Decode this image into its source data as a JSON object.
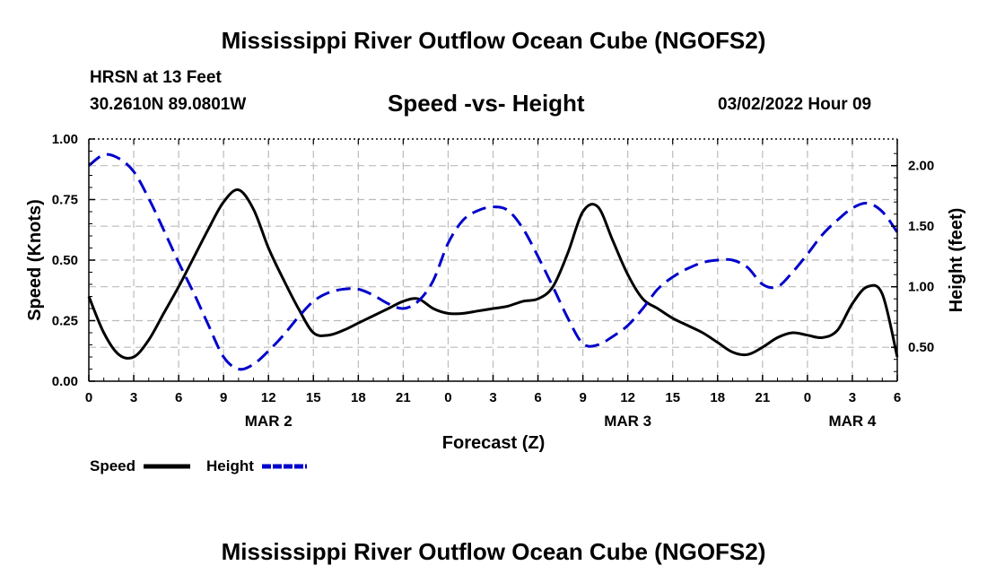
{
  "page": {
    "title": "Mississippi River Outflow Ocean Cube (NGOFS2)",
    "station": "HRSN at 13 Feet",
    "coords": "30.2610N  89.0801W",
    "subtitle": "Speed -vs- Height",
    "datetime": "03/02/2022 Hour 09",
    "footer_title": "Mississippi River Outflow Ocean Cube (NGOFS2)"
  },
  "chart_data": {
    "type": "line",
    "title": "Speed -vs- Height",
    "xlabel": "Forecast (Z)",
    "ylabel": "Speed (Knots)",
    "y2label": "Height (feet)",
    "xlim": [
      0,
      54
    ],
    "ylim": [
      0,
      1.0
    ],
    "y2lim": [
      0.22,
      2.22
    ],
    "grid": true,
    "x_ticks": [
      0,
      3,
      6,
      9,
      12,
      15,
      18,
      21,
      24,
      27,
      30,
      33,
      36,
      39,
      42,
      45,
      48,
      51,
      54
    ],
    "x_tick_labels": [
      "0",
      "3",
      "6",
      "9",
      "12",
      "15",
      "18",
      "21",
      "0",
      "3",
      "6",
      "9",
      "12",
      "15",
      "18",
      "21",
      "0",
      "3",
      "6"
    ],
    "y_ticks": [
      0.0,
      0.25,
      0.5,
      0.75,
      1.0
    ],
    "y_tick_labels": [
      "0.00",
      "0.25",
      "0.50",
      "0.75",
      "1.00"
    ],
    "y2_ticks": [
      0.5,
      1.0,
      1.5,
      2.0
    ],
    "y2_tick_labels": [
      "0.50",
      "1.00",
      "1.50",
      "2.00"
    ],
    "date_labels": [
      {
        "x": 12,
        "label": "MAR 2"
      },
      {
        "x": 36,
        "label": "MAR 3"
      },
      {
        "x": 51,
        "label": "MAR 4"
      }
    ],
    "legend_position": "bottom-left",
    "series": [
      {
        "name": "Speed",
        "axis": "left",
        "color": "#000000",
        "dash": "solid",
        "x": [
          0,
          1,
          2,
          3,
          4,
          5,
          6,
          7,
          8,
          9,
          10,
          11,
          12,
          13,
          14,
          15,
          16,
          17,
          18,
          19,
          20,
          21,
          22,
          23,
          24,
          25,
          26,
          27,
          28,
          29,
          30,
          31,
          32,
          33,
          34,
          35,
          36,
          37,
          38,
          39,
          40,
          41,
          42,
          43,
          44,
          45,
          46,
          47,
          48,
          49,
          50,
          51,
          52,
          53,
          54
        ],
        "values": [
          0.35,
          0.2,
          0.11,
          0.1,
          0.17,
          0.28,
          0.39,
          0.51,
          0.63,
          0.74,
          0.79,
          0.71,
          0.55,
          0.42,
          0.3,
          0.2,
          0.19,
          0.21,
          0.24,
          0.27,
          0.3,
          0.33,
          0.34,
          0.3,
          0.28,
          0.28,
          0.29,
          0.3,
          0.31,
          0.33,
          0.34,
          0.39,
          0.53,
          0.7,
          0.72,
          0.58,
          0.44,
          0.34,
          0.3,
          0.26,
          0.23,
          0.2,
          0.16,
          0.12,
          0.11,
          0.14,
          0.18,
          0.2,
          0.19,
          0.18,
          0.21,
          0.32,
          0.39,
          0.36,
          0.1
        ]
      },
      {
        "name": "Height",
        "axis": "right",
        "color": "#0000cc",
        "dash": "dashed",
        "x": [
          0,
          1,
          2,
          3,
          4,
          5,
          6,
          7,
          8,
          9,
          10,
          11,
          12,
          13,
          14,
          15,
          16,
          17,
          18,
          19,
          20,
          21,
          22,
          23,
          24,
          25,
          26,
          27,
          28,
          29,
          30,
          31,
          32,
          33,
          34,
          35,
          36,
          37,
          38,
          39,
          40,
          41,
          42,
          43,
          44,
          45,
          46,
          47,
          48,
          49,
          50,
          51,
          52,
          53,
          54
        ],
        "values": [
          2.0,
          2.09,
          2.06,
          1.95,
          1.73,
          1.47,
          1.2,
          0.95,
          0.68,
          0.42,
          0.32,
          0.36,
          0.47,
          0.6,
          0.75,
          0.88,
          0.95,
          0.98,
          0.98,
          0.93,
          0.86,
          0.82,
          0.88,
          1.05,
          1.36,
          1.55,
          1.63,
          1.66,
          1.63,
          1.48,
          1.25,
          1.0,
          0.74,
          0.53,
          0.52,
          0.59,
          0.68,
          0.82,
          0.98,
          1.08,
          1.15,
          1.2,
          1.22,
          1.22,
          1.16,
          1.02,
          1.0,
          1.12,
          1.27,
          1.43,
          1.55,
          1.65,
          1.69,
          1.62,
          1.45
        ]
      }
    ]
  }
}
